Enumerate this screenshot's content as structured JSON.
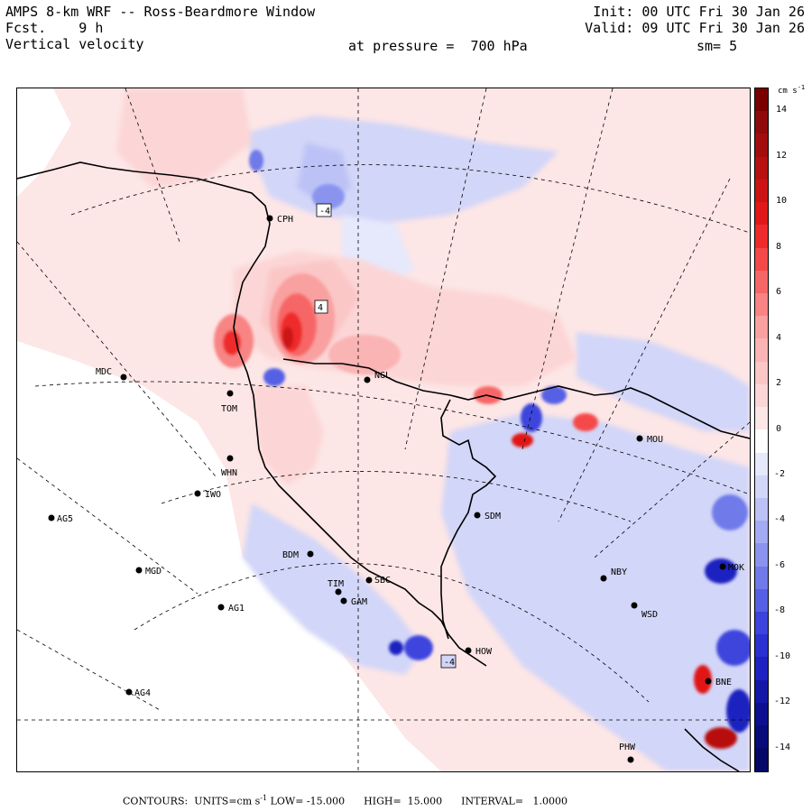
{
  "header": {
    "title": "AMPS 8-km WRF -- Ross-Beardmore Window",
    "forecast": "Fcst.    9 h",
    "field": "Vertical velocity",
    "pressure": "at pressure =  700 hPa",
    "init": "Init: 00 UTC Fri 30 Jan 26",
    "valid": "Valid: 09 UTC Fri 30 Jan 26",
    "smoothing": "sm= 5"
  },
  "colorbar": {
    "units": "cm s",
    "units_exp": "-1",
    "ticks": [
      "14",
      "12",
      "10",
      "8",
      "6",
      "4",
      "2",
      "0",
      "-2",
      "-4",
      "-6",
      "-8",
      "-10",
      "-12",
      "-14"
    ],
    "levels": [
      {
        "value": 15,
        "color": "#7a0000"
      },
      {
        "value": 14,
        "color": "#8f0a0a"
      },
      {
        "value": 13,
        "color": "#a40d0d"
      },
      {
        "value": 12,
        "color": "#b81010"
      },
      {
        "value": 11,
        "color": "#cc1414"
      },
      {
        "value": 10,
        "color": "#e01818"
      },
      {
        "value": 9,
        "color": "#ee2a2a"
      },
      {
        "value": 8,
        "color": "#f54848"
      },
      {
        "value": 7,
        "color": "#f76666"
      },
      {
        "value": 6,
        "color": "#f88484"
      },
      {
        "value": 5,
        "color": "#f9a0a0"
      },
      {
        "value": 4,
        "color": "#fab4b4"
      },
      {
        "value": 3,
        "color": "#fbc6c6"
      },
      {
        "value": 2,
        "color": "#fcd6d6"
      },
      {
        "value": 1,
        "color": "#fde6e6"
      },
      {
        "value": 0,
        "color": "#ffffff"
      },
      {
        "value": -1,
        "color": "#e6e8fb"
      },
      {
        "value": -2,
        "color": "#d2d6f8"
      },
      {
        "value": -3,
        "color": "#bcc2f6"
      },
      {
        "value": -4,
        "color": "#a3acf2"
      },
      {
        "value": -5,
        "color": "#8a94ee"
      },
      {
        "value": -6,
        "color": "#707ae9"
      },
      {
        "value": -7,
        "color": "#5660e4"
      },
      {
        "value": -8,
        "color": "#3c44dd"
      },
      {
        "value": -9,
        "color": "#2a30d2"
      },
      {
        "value": -10,
        "color": "#1e22c0"
      },
      {
        "value": -11,
        "color": "#1418a8"
      },
      {
        "value": -12,
        "color": "#0c1090"
      },
      {
        "value": -13,
        "color": "#080c7a"
      },
      {
        "value": -14,
        "color": "#050866"
      }
    ]
  },
  "map": {
    "field_labels": [
      "-4",
      "4",
      "-4"
    ],
    "stations": [
      "CPH",
      "MDC",
      "TOM",
      "NGL",
      "MOU",
      "WHN",
      "IWO",
      "AG5",
      "SDM",
      "BDM",
      "MGD",
      "NBY",
      "TIM",
      "GAM",
      "SBC",
      "AG1",
      "WSD",
      "HOW",
      "AG4",
      "PHW",
      "BNE",
      "MOK"
    ]
  },
  "footer": {
    "contours": "CONTOURS:",
    "units": "UNITS=cm s",
    "units_exp": "-1",
    "low": "LOW= -15.000",
    "high": "HIGH=  15.000",
    "interval": "INTERVAL=   1.0000"
  }
}
